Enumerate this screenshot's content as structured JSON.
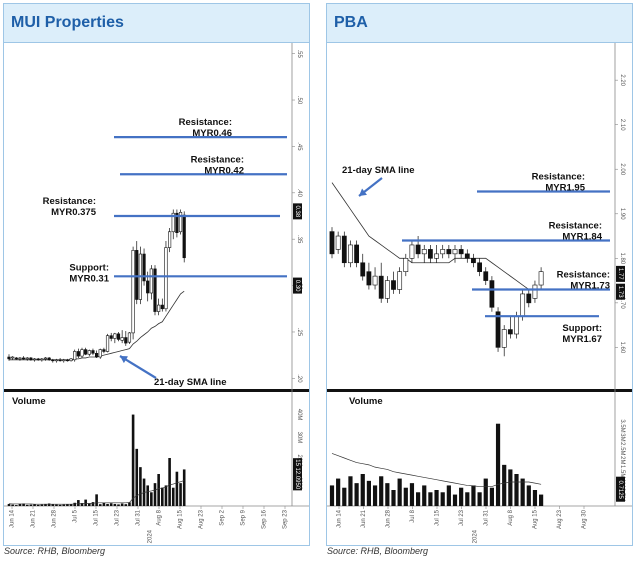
{
  "left": {
    "title": "MUI Properties",
    "source": "Source: RHB, Bloomberg",
    "chart_data": {
      "type": "candlestick",
      "price_ylim": [
        0.195,
        0.555
      ],
      "price_ticks": [
        ".20",
        ".25",
        ".30",
        ".35",
        ".40",
        ".45",
        ".50",
        ".55"
      ],
      "price_tags": [
        {
          "text": "0.38",
          "value": 0.38
        },
        {
          "text": "0.30",
          "value": 0.3
        }
      ],
      "x_ticks": [
        "Jun 14",
        "Jun 21",
        "Jun 28",
        "Jul 5",
        "Jul 15",
        "Jul 23",
        "Jul 31",
        "Aug 8",
        "Aug 15",
        "Aug 23",
        "Sep 2",
        "Sep 9",
        "Sep 16",
        "Sep 23"
      ],
      "year_label": "2024",
      "candles": [
        {
          "o": 0.223,
          "h": 0.226,
          "l": 0.219,
          "c": 0.221
        },
        {
          "o": 0.222,
          "h": 0.224,
          "l": 0.22,
          "c": 0.223
        },
        {
          "o": 0.222,
          "h": 0.223,
          "l": 0.22,
          "c": 0.221
        },
        {
          "o": 0.221,
          "h": 0.223,
          "l": 0.219,
          "c": 0.222
        },
        {
          "o": 0.222,
          "h": 0.224,
          "l": 0.22,
          "c": 0.221
        },
        {
          "o": 0.221,
          "h": 0.223,
          "l": 0.219,
          "c": 0.222
        },
        {
          "o": 0.222,
          "h": 0.223,
          "l": 0.219,
          "c": 0.22
        },
        {
          "o": 0.22,
          "h": 0.222,
          "l": 0.218,
          "c": 0.221
        },
        {
          "o": 0.221,
          "h": 0.222,
          "l": 0.219,
          "c": 0.22
        },
        {
          "o": 0.22,
          "h": 0.222,
          "l": 0.218,
          "c": 0.221
        },
        {
          "o": 0.221,
          "h": 0.223,
          "l": 0.219,
          "c": 0.222
        },
        {
          "o": 0.222,
          "h": 0.223,
          "l": 0.219,
          "c": 0.22
        },
        {
          "o": 0.22,
          "h": 0.221,
          "l": 0.217,
          "c": 0.219
        },
        {
          "o": 0.219,
          "h": 0.221,
          "l": 0.217,
          "c": 0.22
        },
        {
          "o": 0.22,
          "h": 0.222,
          "l": 0.218,
          "c": 0.219
        },
        {
          "o": 0.219,
          "h": 0.221,
          "l": 0.217,
          "c": 0.22
        },
        {
          "o": 0.22,
          "h": 0.221,
          "l": 0.218,
          "c": 0.219
        },
        {
          "o": 0.219,
          "h": 0.222,
          "l": 0.218,
          "c": 0.221
        },
        {
          "o": 0.22,
          "h": 0.231,
          "l": 0.218,
          "c": 0.229
        },
        {
          "o": 0.229,
          "h": 0.232,
          "l": 0.222,
          "c": 0.224
        },
        {
          "o": 0.224,
          "h": 0.233,
          "l": 0.222,
          "c": 0.231
        },
        {
          "o": 0.231,
          "h": 0.233,
          "l": 0.225,
          "c": 0.226
        },
        {
          "o": 0.226,
          "h": 0.231,
          "l": 0.224,
          "c": 0.23
        },
        {
          "o": 0.23,
          "h": 0.232,
          "l": 0.225,
          "c": 0.227
        },
        {
          "o": 0.227,
          "h": 0.23,
          "l": 0.222,
          "c": 0.223
        },
        {
          "o": 0.223,
          "h": 0.232,
          "l": 0.221,
          "c": 0.231
        },
        {
          "o": 0.231,
          "h": 0.233,
          "l": 0.227,
          "c": 0.229
        },
        {
          "o": 0.229,
          "h": 0.248,
          "l": 0.228,
          "c": 0.246
        },
        {
          "o": 0.246,
          "h": 0.249,
          "l": 0.24,
          "c": 0.243
        },
        {
          "o": 0.243,
          "h": 0.249,
          "l": 0.238,
          "c": 0.248
        },
        {
          "o": 0.248,
          "h": 0.25,
          "l": 0.24,
          "c": 0.242
        },
        {
          "o": 0.241,
          "h": 0.252,
          "l": 0.238,
          "c": 0.244
        },
        {
          "o": 0.244,
          "h": 0.251,
          "l": 0.235,
          "c": 0.238
        },
        {
          "o": 0.239,
          "h": 0.25,
          "l": 0.237,
          "c": 0.249
        },
        {
          "o": 0.249,
          "h": 0.342,
          "l": 0.242,
          "c": 0.338
        },
        {
          "o": 0.338,
          "h": 0.348,
          "l": 0.28,
          "c": 0.285
        },
        {
          "o": 0.285,
          "h": 0.342,
          "l": 0.28,
          "c": 0.334
        },
        {
          "o": 0.334,
          "h": 0.34,
          "l": 0.3,
          "c": 0.305
        },
        {
          "o": 0.305,
          "h": 0.315,
          "l": 0.283,
          "c": 0.292
        },
        {
          "o": 0.292,
          "h": 0.322,
          "l": 0.285,
          "c": 0.318
        },
        {
          "o": 0.318,
          "h": 0.322,
          "l": 0.268,
          "c": 0.272
        },
        {
          "o": 0.272,
          "h": 0.286,
          "l": 0.268,
          "c": 0.279
        },
        {
          "o": 0.279,
          "h": 0.286,
          "l": 0.272,
          "c": 0.275
        },
        {
          "o": 0.275,
          "h": 0.348,
          "l": 0.272,
          "c": 0.341
        },
        {
          "o": 0.341,
          "h": 0.362,
          "l": 0.336,
          "c": 0.358
        },
        {
          "o": 0.358,
          "h": 0.382,
          "l": 0.35,
          "c": 0.378
        },
        {
          "o": 0.378,
          "h": 0.382,
          "l": 0.352,
          "c": 0.357
        },
        {
          "o": 0.358,
          "h": 0.382,
          "l": 0.355,
          "c": 0.379
        },
        {
          "o": 0.376,
          "h": 0.38,
          "l": 0.325,
          "c": 0.33
        }
      ],
      "sma21": {
        "name": "21-day SMA line",
        "values": [
          0.22,
          0.22,
          0.22,
          0.22,
          0.22,
          0.22,
          0.22,
          0.22,
          0.22,
          0.22,
          0.22,
          0.22,
          0.22,
          0.22,
          0.22,
          0.22,
          0.22,
          0.22,
          0.221,
          0.221,
          0.222,
          0.222,
          0.223,
          0.223,
          0.223,
          0.224,
          0.225,
          0.226,
          0.227,
          0.228,
          0.229,
          0.23,
          0.231,
          0.232,
          0.237,
          0.24,
          0.244,
          0.247,
          0.25,
          0.254,
          0.256,
          0.259,
          0.261,
          0.267,
          0.273,
          0.279,
          0.285,
          0.291,
          0.294
        ]
      },
      "levels": [
        {
          "label": "Resistance:",
          "value_label": "MYR0.46",
          "value": 0.46
        },
        {
          "label": "Resistance:",
          "value_label": "MYR0.42",
          "value": 0.42
        },
        {
          "label": "Resistance:",
          "value_label": "MYR0.375",
          "value": 0.375
        },
        {
          "label": "Support:",
          "value_label": "MYR0.31",
          "value": 0.31
        }
      ],
      "sma_annotation": "21-day SMA line",
      "volume": {
        "label": "Volume",
        "ylim": [
          0,
          42
        ],
        "ticks": [
          "40M",
          "30M",
          "20M",
          "10M"
        ],
        "tags": [
          {
            "text": "15.6750",
            "value": 15.675
          },
          {
            "text": "12.0950",
            "value": 12.095
          }
        ],
        "values": [
          0.9,
          0.6,
          0.4,
          0.9,
          1.1,
          0.5,
          0.6,
          0.7,
          0.5,
          0.6,
          0.9,
          1.1,
          0.7,
          0.6,
          0.5,
          0.6,
          0.7,
          0.8,
          1.4,
          2.6,
          1.3,
          2.8,
          1.1,
          1.7,
          5.1,
          0.8,
          1.5,
          0.9,
          1.2,
          0.9,
          0.7,
          1.1,
          0.8,
          1.6,
          40.0,
          25.0,
          17.0,
          12.0,
          9.0,
          6.0,
          10.0,
          14.0,
          8.0,
          9.0,
          21.0,
          8.0,
          15.0,
          10.0,
          16.0
        ],
        "ma": [
          1.0,
          0.9,
          0.9,
          0.9,
          0.9,
          0.9,
          0.9,
          0.8,
          0.8,
          0.8,
          0.8,
          0.8,
          0.8,
          0.8,
          0.8,
          0.8,
          0.8,
          0.8,
          0.9,
          1.0,
          1.0,
          1.1,
          1.1,
          1.2,
          1.4,
          1.4,
          1.4,
          1.4,
          1.4,
          1.4,
          1.4,
          1.4,
          1.4,
          1.5,
          3.4,
          4.5,
          5.3,
          5.9,
          6.3,
          6.6,
          7.0,
          7.6,
          7.9,
          8.3,
          9.3,
          9.6,
          10.2,
          10.6,
          11.2
        ]
      }
    }
  },
  "right": {
    "title": "PBA",
    "source": "Source: RHB, Bloomberg",
    "chart_data": {
      "type": "candlestick",
      "price_ylim": [
        1.52,
        2.27
      ],
      "price_ticks": [
        "2.20",
        "2.10",
        "2.00",
        "1.90",
        "1.80",
        "1.70",
        "1.60",
        "1.50"
      ],
      "price_tick_values": [
        2.2,
        2.1,
        2.0,
        1.9,
        1.8,
        1.7,
        1.6,
        1.5
      ],
      "price_tags": [
        {
          "text": "1.77",
          "value": 1.765
        },
        {
          "text": "1.73",
          "value": 1.725
        }
      ],
      "x_ticks": [
        "Jun 14",
        "Jun 21",
        "Jun 28",
        "Jul 8",
        "Jul 15",
        "Jul 23",
        "Jul 31",
        "Aug 8",
        "Aug 15",
        "Aug 23",
        "Aug 30"
      ],
      "year_label": "2024",
      "candles": [
        {
          "o": 1.86,
          "h": 1.87,
          "l": 1.8,
          "c": 1.81
        },
        {
          "o": 1.82,
          "h": 1.86,
          "l": 1.81,
          "c": 1.85
        },
        {
          "o": 1.85,
          "h": 1.86,
          "l": 1.78,
          "c": 1.79
        },
        {
          "o": 1.79,
          "h": 1.84,
          "l": 1.78,
          "c": 1.83
        },
        {
          "o": 1.83,
          "h": 1.84,
          "l": 1.78,
          "c": 1.79
        },
        {
          "o": 1.79,
          "h": 1.81,
          "l": 1.75,
          "c": 1.76
        },
        {
          "o": 1.77,
          "h": 1.79,
          "l": 1.73,
          "c": 1.74
        },
        {
          "o": 1.74,
          "h": 1.78,
          "l": 1.73,
          "c": 1.76
        },
        {
          "o": 1.76,
          "h": 1.79,
          "l": 1.7,
          "c": 1.71
        },
        {
          "o": 1.71,
          "h": 1.76,
          "l": 1.7,
          "c": 1.75
        },
        {
          "o": 1.75,
          "h": 1.77,
          "l": 1.72,
          "c": 1.73
        },
        {
          "o": 1.73,
          "h": 1.78,
          "l": 1.72,
          "c": 1.77
        },
        {
          "o": 1.77,
          "h": 1.81,
          "l": 1.76,
          "c": 1.8
        },
        {
          "o": 1.8,
          "h": 1.84,
          "l": 1.79,
          "c": 1.83
        },
        {
          "o": 1.83,
          "h": 1.85,
          "l": 1.8,
          "c": 1.81
        },
        {
          "o": 1.81,
          "h": 1.83,
          "l": 1.79,
          "c": 1.82
        },
        {
          "o": 1.82,
          "h": 1.83,
          "l": 1.79,
          "c": 1.8
        },
        {
          "o": 1.8,
          "h": 1.83,
          "l": 1.79,
          "c": 1.81
        },
        {
          "o": 1.81,
          "h": 1.83,
          "l": 1.8,
          "c": 1.82
        },
        {
          "o": 1.82,
          "h": 1.83,
          "l": 1.8,
          "c": 1.81
        },
        {
          "o": 1.81,
          "h": 1.83,
          "l": 1.79,
          "c": 1.82
        },
        {
          "o": 1.82,
          "h": 1.83,
          "l": 1.8,
          "c": 1.81
        },
        {
          "o": 1.81,
          "h": 1.82,
          "l": 1.79,
          "c": 1.8
        },
        {
          "o": 1.8,
          "h": 1.81,
          "l": 1.78,
          "c": 1.79
        },
        {
          "o": 1.79,
          "h": 1.8,
          "l": 1.76,
          "c": 1.77
        },
        {
          "o": 1.77,
          "h": 1.78,
          "l": 1.74,
          "c": 1.75
        },
        {
          "o": 1.75,
          "h": 1.76,
          "l": 1.68,
          "c": 1.69
        },
        {
          "o": 1.68,
          "h": 1.69,
          "l": 1.59,
          "c": 1.6
        },
        {
          "o": 1.6,
          "h": 1.65,
          "l": 1.58,
          "c": 1.64
        },
        {
          "o": 1.64,
          "h": 1.67,
          "l": 1.62,
          "c": 1.63
        },
        {
          "o": 1.63,
          "h": 1.68,
          "l": 1.62,
          "c": 1.67
        },
        {
          "o": 1.67,
          "h": 1.73,
          "l": 1.66,
          "c": 1.72
        },
        {
          "o": 1.72,
          "h": 1.73,
          "l": 1.69,
          "c": 1.7
        },
        {
          "o": 1.71,
          "h": 1.75,
          "l": 1.7,
          "c": 1.74
        },
        {
          "o": 1.74,
          "h": 1.78,
          "l": 1.73,
          "c": 1.77
        }
      ],
      "sma21": {
        "name": "21-day SMA line",
        "values": [
          1.97,
          1.95,
          1.93,
          1.91,
          1.89,
          1.87,
          1.85,
          1.84,
          1.83,
          1.82,
          1.81,
          1.8,
          1.8,
          1.79,
          1.79,
          1.79,
          1.79,
          1.79,
          1.79,
          1.79,
          1.8,
          1.8,
          1.8,
          1.8,
          1.8,
          1.8,
          1.79,
          1.78,
          1.77,
          1.76,
          1.75,
          1.74,
          1.73,
          1.73,
          1.73
        ]
      },
      "levels": [
        {
          "label": "Resistance:",
          "value_label": "MYR1.95",
          "value": 1.95
        },
        {
          "label": "Resistance:",
          "value_label": "MYR1.84",
          "value": 1.84
        },
        {
          "label": "Resistance:",
          "value_label": "MYR1.73",
          "value": 1.73
        },
        {
          "label": "Support:",
          "value_label": "MYR1.67",
          "value": 1.67
        }
      ],
      "sma_annotation": "21-day SMA line",
      "volume": {
        "label": "Volume",
        "ylim": [
          0,
          4.2
        ],
        "ticks": [
          "3.5M",
          "3M",
          "2.5M",
          "2M",
          "1.5M",
          "1M",
          "0.5M"
        ],
        "tick_values": [
          3.5,
          3.0,
          2.5,
          2.0,
          1.5,
          1.0,
          0.5
        ],
        "tags": [
          {
            "text": "0.757M",
            "value": 0.757
          },
          {
            "text": "0.7125",
            "value": 0.7125
          }
        ],
        "values": [
          0.9,
          1.2,
          0.8,
          1.3,
          1.0,
          1.4,
          1.1,
          0.9,
          1.3,
          1.0,
          0.7,
          1.2,
          0.8,
          1.0,
          0.6,
          0.9,
          0.6,
          0.7,
          0.6,
          0.9,
          0.5,
          0.8,
          0.6,
          0.9,
          0.6,
          1.2,
          0.8,
          3.6,
          1.8,
          1.6,
          1.4,
          1.2,
          0.9,
          0.7,
          0.5
        ],
        "ma": [
          2.3,
          2.2,
          2.1,
          2.0,
          1.9,
          1.85,
          1.8,
          1.7,
          1.65,
          1.6,
          1.5,
          1.45,
          1.4,
          1.35,
          1.3,
          1.25,
          1.2,
          1.15,
          1.1,
          1.05,
          1.0,
          0.95,
          0.9,
          0.88,
          0.85,
          0.85,
          0.85,
          0.95,
          1.0,
          1.05,
          1.05,
          1.05,
          1.05,
          1.0,
          0.95
        ]
      }
    }
  }
}
